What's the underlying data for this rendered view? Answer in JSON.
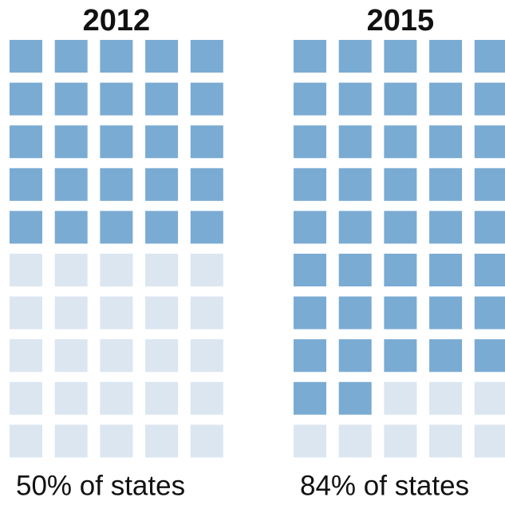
{
  "chart_data": [
    {
      "type": "waffle",
      "title": "2012",
      "values": [
        50
      ],
      "value_labels": [
        "50% of states"
      ],
      "grid": [
        10,
        5
      ],
      "color": "#7aabd3",
      "empty_color": "#dbe6f1"
    },
    {
      "type": "waffle",
      "title": "2015",
      "values": [
        84
      ],
      "value_labels": [
        "84% of states"
      ],
      "grid": [
        10,
        5
      ],
      "color": "#7aabd3",
      "empty_color": "#dbe6f1"
    }
  ]
}
